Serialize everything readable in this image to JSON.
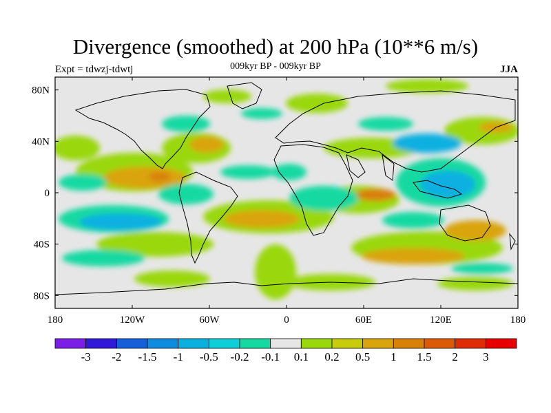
{
  "title": "Divergence (smoothed) at 200 hPa (10**6 m/s)",
  "subtitle": "009kyr BP - 009kyr BP",
  "left_label": "Expt = tdwzj-tdwtj",
  "right_label": "JJA",
  "map": {
    "x_ticks": [
      "180",
      "120W",
      "60W",
      "0",
      "60E",
      "120E",
      "180"
    ],
    "y_ticks": [
      "80N",
      "40N",
      "0",
      "40S",
      "80S"
    ],
    "background_color": "#e6e6e6"
  },
  "colorbar": {
    "colors": [
      "#7b1fe6",
      "#3218d8",
      "#1560d8",
      "#0d8ce0",
      "#09b0e0",
      "#0ecfd8",
      "#16d9a2",
      "#e6e6e6",
      "#9ad80c",
      "#c7cc0c",
      "#d9a40c",
      "#d98008",
      "#dc5a06",
      "#e02c04",
      "#e80000"
    ],
    "labels": [
      "-3",
      "-2",
      "-1.5",
      "-1",
      "-0.5",
      "-0.2",
      "-0.1",
      "0.1",
      "0.2",
      "0.5",
      "1",
      "1.5",
      "2",
      "3"
    ]
  }
}
